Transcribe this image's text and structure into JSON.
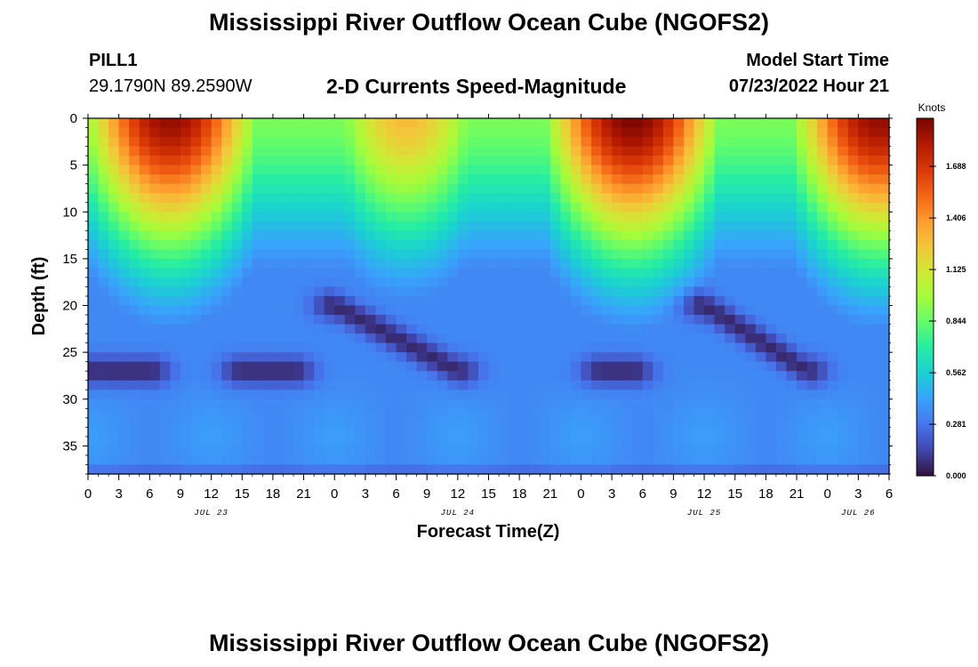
{
  "page": {
    "title": "Mississippi River Outflow Ocean Cube (NGOFS2)",
    "repeated_title": "Mississippi River Outflow Ocean Cube (NGOFS2)"
  },
  "header": {
    "station": "PILL1",
    "coordinates": "29.1790N  89.2590W",
    "subtitle": "2-D Currents Speed-Magnitude",
    "model_start_label": "Model Start Time",
    "model_start_value": "07/23/2022 Hour 21"
  },
  "chart_data": {
    "type": "heatmap",
    "title": "2-D Currents Speed-Magnitude",
    "xlabel": "Forecast Time(Z)",
    "ylabel": "Depth (ft)",
    "x_hours_range": [
      0,
      78
    ],
    "x_tick_labels": [
      "0",
      "3",
      "6",
      "9",
      "12",
      "15",
      "18",
      "21",
      "0",
      "3",
      "6",
      "9",
      "12",
      "15",
      "18",
      "21",
      "0",
      "3",
      "6",
      "9",
      "12",
      "15",
      "18",
      "21",
      "0",
      "3",
      "6"
    ],
    "date_labels": [
      {
        "text": "JUL 23",
        "hour": 12
      },
      {
        "text": "JUL 24",
        "hour": 36
      },
      {
        "text": "JUL 25",
        "hour": 60
      },
      {
        "text": "JUL 26",
        "hour": 75
      }
    ],
    "ylim": [
      0,
      38
    ],
    "y_inverted": true,
    "y_ticks": [
      0,
      5,
      10,
      15,
      20,
      25,
      30,
      35
    ],
    "grid": false,
    "colorbar": {
      "units": "Knots",
      "range": [
        0,
        1.95
      ],
      "ticks": [
        "0.000",
        "0.281",
        "0.562",
        "0.844",
        "1.125",
        "1.406",
        "1.688"
      ],
      "tick_values": [
        0.0,
        0.281,
        0.562,
        0.844,
        1.125,
        1.406,
        1.688
      ],
      "colors": [
        "#30123b",
        "#4145ab",
        "#4675ed",
        "#39a2fc",
        "#1bcfd4",
        "#24eca6",
        "#61fc6c",
        "#a4fc3b",
        "#d1e834",
        "#f3c63a",
        "#fe9b2d",
        "#f36315",
        "#d93806",
        "#b11901",
        "#7a0402"
      ]
    },
    "field_model": {
      "surface_peaks": [
        {
          "hour": 8,
          "depth": 0,
          "speed": 1.85
        },
        {
          "hour": 31,
          "depth": 0,
          "speed": 1.25
        },
        {
          "hour": 53,
          "depth": 3,
          "speed": 1.9
        },
        {
          "hour": 77,
          "depth": 0,
          "speed": 1.85
        }
      ],
      "low_speed_bands": [
        {
          "start_hour": 24,
          "end_hour": 36,
          "depth_start": 20,
          "depth_end": 27
        },
        {
          "start_hour": 60,
          "end_hour": 70,
          "depth_start": 20,
          "depth_end": 27
        },
        {
          "start_hour": 0,
          "end_hour": 6,
          "depth_start": 27,
          "depth_end": 27
        },
        {
          "start_hour": 15,
          "end_hour": 20,
          "depth_start": 27,
          "depth_end": 27
        },
        {
          "start_hour": 50,
          "end_hour": 53,
          "depth_start": 27,
          "depth_end": 27
        }
      ]
    }
  }
}
